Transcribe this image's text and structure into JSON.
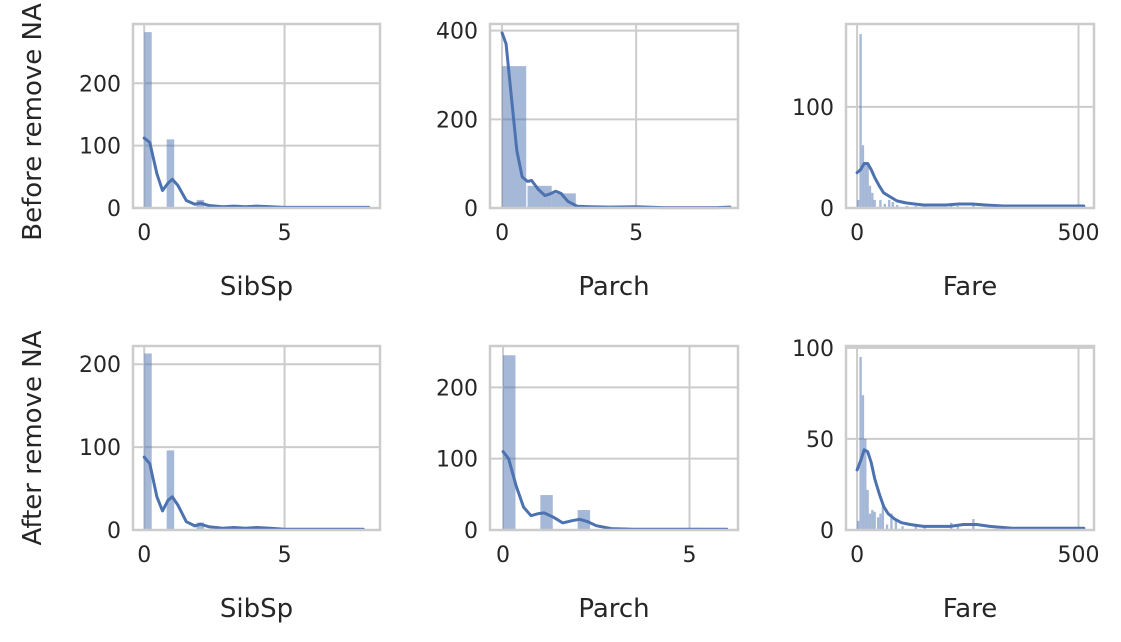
{
  "figure": {
    "row_labels": [
      "Before remove NA",
      "After remove NA"
    ]
  },
  "colors": {
    "series": "#4c72b0",
    "grid": "#cccccc",
    "text": "#262626"
  },
  "chart_data": [
    {
      "type": "bar",
      "xlabel": "SibSp",
      "ylabel": "",
      "title": "",
      "xlim": [
        -0.4,
        8.4
      ],
      "ylim": [
        0,
        295
      ],
      "xticks": [
        0,
        5
      ],
      "yticks": [
        0,
        100,
        200
      ],
      "grid": true,
      "bins": [
        {
          "x0": 0.0,
          "x1": 0.267,
          "y": 282
        },
        {
          "x0": 0.8,
          "x1": 1.067,
          "y": 110
        },
        {
          "x0": 1.867,
          "x1": 2.133,
          "y": 13
        },
        {
          "x0": 2.933,
          "x1": 3.2,
          "y": 3
        },
        {
          "x0": 3.733,
          "x1": 4.0,
          "y": 3
        },
        {
          "x0": 4.8,
          "x1": 5.067,
          "y": 2
        },
        {
          "x0": 7.733,
          "x1": 8.0,
          "y": 1
        }
      ],
      "kde": [
        [
          0,
          112
        ],
        [
          0.2,
          105
        ],
        [
          0.45,
          55
        ],
        [
          0.65,
          28
        ],
        [
          0.85,
          40
        ],
        [
          1.0,
          46
        ],
        [
          1.2,
          36
        ],
        [
          1.5,
          12
        ],
        [
          1.8,
          6
        ],
        [
          2.0,
          8
        ],
        [
          2.3,
          4
        ],
        [
          2.8,
          2
        ],
        [
          3.2,
          3
        ],
        [
          3.6,
          2
        ],
        [
          4.0,
          3
        ],
        [
          4.5,
          2
        ],
        [
          5.0,
          1
        ],
        [
          6.0,
          1
        ],
        [
          7.0,
          1
        ],
        [
          8.0,
          1
        ]
      ]
    },
    {
      "type": "bar",
      "xlabel": "Parch",
      "ylabel": "",
      "title": "",
      "xlim": [
        -0.45,
        8.8
      ],
      "ylim": [
        0,
        415
      ],
      "xticks": [
        0,
        5
      ],
      "yticks": [
        0,
        200,
        400
      ],
      "grid": true,
      "bins": [
        {
          "x0": 0.0,
          "x1": 0.9,
          "y": 320
        },
        {
          "x0": 0.95,
          "x1": 1.85,
          "y": 50
        },
        {
          "x0": 1.85,
          "x1": 2.75,
          "y": 33
        },
        {
          "x0": 2.75,
          "x1": 3.3,
          "y": 4
        },
        {
          "x0": 3.3,
          "x1": 4.6,
          "y": 4
        },
        {
          "x0": 4.6,
          "x1": 5.5,
          "y": 3
        },
        {
          "x0": 5.5,
          "x1": 6.4,
          "y": 1
        }
      ],
      "kde": [
        [
          0,
          395
        ],
        [
          0.15,
          370
        ],
        [
          0.35,
          250
        ],
        [
          0.55,
          130
        ],
        [
          0.75,
          70
        ],
        [
          0.95,
          60
        ],
        [
          1.1,
          62
        ],
        [
          1.35,
          42
        ],
        [
          1.6,
          28
        ],
        [
          1.8,
          32
        ],
        [
          2.0,
          38
        ],
        [
          2.2,
          33
        ],
        [
          2.45,
          15
        ],
        [
          2.8,
          4
        ],
        [
          3.3,
          3
        ],
        [
          4.0,
          2
        ],
        [
          5.0,
          3
        ],
        [
          6.0,
          1
        ],
        [
          7.0,
          1
        ],
        [
          8.0,
          1
        ],
        [
          8.5,
          2
        ]
      ]
    },
    {
      "type": "bar",
      "xlabel": "Fare",
      "ylabel": "",
      "title": "",
      "xlim": [
        -25,
        535
      ],
      "ylim": [
        0,
        182
      ],
      "xticks": [
        0,
        500
      ],
      "yticks": [
        0,
        100
      ],
      "grid": true,
      "bins": [
        {
          "x0": 0,
          "x1": 5.3,
          "y": 8
        },
        {
          "x0": 5.3,
          "x1": 10.6,
          "y": 172
        },
        {
          "x0": 10.6,
          "x1": 15.9,
          "y": 62
        },
        {
          "x0": 15.9,
          "x1": 21.2,
          "y": 44
        },
        {
          "x0": 21.2,
          "x1": 26.5,
          "y": 45
        },
        {
          "x0": 26.5,
          "x1": 31.8,
          "y": 22
        },
        {
          "x0": 31.8,
          "x1": 37.1,
          "y": 15
        },
        {
          "x0": 37.1,
          "x1": 42.4,
          "y": 8
        },
        {
          "x0": 50,
          "x1": 55.3,
          "y": 8
        },
        {
          "x0": 60,
          "x1": 65.3,
          "y": 4
        },
        {
          "x0": 70,
          "x1": 75.3,
          "y": 8
        },
        {
          "x0": 78,
          "x1": 83.3,
          "y": 6
        },
        {
          "x0": 88,
          "x1": 93.3,
          "y": 3
        },
        {
          "x0": 110,
          "x1": 115.3,
          "y": 2
        },
        {
          "x0": 130,
          "x1": 135.3,
          "y": 2
        },
        {
          "x0": 150,
          "x1": 155.3,
          "y": 4
        },
        {
          "x0": 210,
          "x1": 215.3,
          "y": 3
        },
        {
          "x0": 225,
          "x1": 230.3,
          "y": 2
        },
        {
          "x0": 260,
          "x1": 265.3,
          "y": 4
        },
        {
          "x0": 510,
          "x1": 515.3,
          "y": 2
        }
      ],
      "kde": [
        [
          0,
          35
        ],
        [
          8,
          38
        ],
        [
          16,
          44
        ],
        [
          24,
          44
        ],
        [
          32,
          38
        ],
        [
          40,
          30
        ],
        [
          50,
          22
        ],
        [
          60,
          15
        ],
        [
          75,
          11
        ],
        [
          90,
          7
        ],
        [
          110,
          5
        ],
        [
          130,
          4
        ],
        [
          150,
          3
        ],
        [
          170,
          3
        ],
        [
          200,
          3
        ],
        [
          230,
          4
        ],
        [
          260,
          4
        ],
        [
          290,
          3
        ],
        [
          330,
          2
        ],
        [
          400,
          2
        ],
        [
          450,
          2
        ],
        [
          512,
          2
        ]
      ]
    },
    {
      "type": "bar",
      "xlabel": "SibSp",
      "ylabel": "",
      "title": "",
      "xlim": [
        -0.4,
        8.4
      ],
      "ylim": [
        0,
        222
      ],
      "xticks": [
        0,
        5
      ],
      "yticks": [
        0,
        100,
        200
      ],
      "grid": true,
      "bins": [
        {
          "x0": 0.0,
          "x1": 0.267,
          "y": 213
        },
        {
          "x0": 0.8,
          "x1": 1.067,
          "y": 96
        },
        {
          "x0": 1.867,
          "x1": 2.133,
          "y": 9
        },
        {
          "x0": 2.933,
          "x1": 3.2,
          "y": 3
        },
        {
          "x0": 3.733,
          "x1": 4.0,
          "y": 3
        },
        {
          "x0": 4.8,
          "x1": 5.067,
          "y": 2
        }
      ],
      "kde": [
        [
          0,
          88
        ],
        [
          0.2,
          80
        ],
        [
          0.45,
          40
        ],
        [
          0.65,
          23
        ],
        [
          0.85,
          36
        ],
        [
          1.0,
          40
        ],
        [
          1.2,
          30
        ],
        [
          1.5,
          10
        ],
        [
          1.8,
          5
        ],
        [
          2.0,
          7
        ],
        [
          2.3,
          4
        ],
        [
          2.8,
          2
        ],
        [
          3.2,
          3
        ],
        [
          3.6,
          2
        ],
        [
          4.0,
          3
        ],
        [
          4.5,
          2
        ],
        [
          5.0,
          1
        ],
        [
          6.0,
          1
        ],
        [
          7.0,
          1
        ],
        [
          7.8,
          1
        ]
      ]
    },
    {
      "type": "bar",
      "xlabel": "Parch",
      "ylabel": "",
      "title": "",
      "xlim": [
        -0.35,
        6.3
      ],
      "ylim": [
        0,
        258
      ],
      "xticks": [
        0,
        5
      ],
      "yticks": [
        0,
        100,
        200
      ],
      "grid": true,
      "bins": [
        {
          "x0": 0.0,
          "x1": 0.333,
          "y": 245
        },
        {
          "x0": 1.0,
          "x1": 1.333,
          "y": 49
        },
        {
          "x0": 2.0,
          "x1": 2.333,
          "y": 28
        },
        {
          "x0": 3.0,
          "x1": 3.333,
          "y": 3
        },
        {
          "x0": 4.0,
          "x1": 4.333,
          "y": 2
        },
        {
          "x0": 5.0,
          "x1": 5.333,
          "y": 3
        },
        {
          "x0": 5.8,
          "x1": 6.1,
          "y": 1
        }
      ],
      "kde": [
        [
          0,
          110
        ],
        [
          0.15,
          100
        ],
        [
          0.35,
          62
        ],
        [
          0.55,
          32
        ],
        [
          0.75,
          20
        ],
        [
          0.95,
          23
        ],
        [
          1.1,
          24
        ],
        [
          1.35,
          18
        ],
        [
          1.6,
          10
        ],
        [
          1.85,
          13
        ],
        [
          2.05,
          15
        ],
        [
          2.25,
          12
        ],
        [
          2.5,
          6
        ],
        [
          2.9,
          2
        ],
        [
          3.5,
          1
        ],
        [
          4.5,
          1
        ],
        [
          5.5,
          1
        ],
        [
          6.0,
          1
        ]
      ]
    },
    {
      "type": "bar",
      "xlabel": "Fare",
      "ylabel": "",
      "title": "",
      "xlim": [
        -25,
        535
      ],
      "ylim": [
        0,
        101
      ],
      "xticks": [
        0,
        500
      ],
      "yticks": [
        0,
        50,
        100
      ],
      "grid": true,
      "bins": [
        {
          "x0": 0,
          "x1": 5.3,
          "y": 5
        },
        {
          "x0": 5.3,
          "x1": 10.6,
          "y": 95
        },
        {
          "x0": 10.6,
          "x1": 15.9,
          "y": 74
        },
        {
          "x0": 15.9,
          "x1": 21.2,
          "y": 50
        },
        {
          "x0": 21.2,
          "x1": 26.5,
          "y": 22
        },
        {
          "x0": 26.5,
          "x1": 31.8,
          "y": 9
        },
        {
          "x0": 31.8,
          "x1": 37.1,
          "y": 11
        },
        {
          "x0": 37.1,
          "x1": 42.4,
          "y": 10
        },
        {
          "x0": 45,
          "x1": 50.3,
          "y": 7
        },
        {
          "x0": 50.3,
          "x1": 55.6,
          "y": 9
        },
        {
          "x0": 55.6,
          "x1": 60.9,
          "y": 13
        },
        {
          "x0": 65,
          "x1": 70.3,
          "y": 3
        },
        {
          "x0": 75,
          "x1": 80.3,
          "y": 9
        },
        {
          "x0": 85,
          "x1": 90.3,
          "y": 5
        },
        {
          "x0": 100,
          "x1": 105.3,
          "y": 2
        },
        {
          "x0": 130,
          "x1": 135.3,
          "y": 2
        },
        {
          "x0": 150,
          "x1": 155.3,
          "y": 2
        },
        {
          "x0": 210,
          "x1": 215.3,
          "y": 4
        },
        {
          "x0": 225,
          "x1": 230.3,
          "y": 3
        },
        {
          "x0": 260,
          "x1": 265.3,
          "y": 6
        },
        {
          "x0": 510,
          "x1": 515.3,
          "y": 1
        }
      ],
      "kde": [
        [
          0,
          33
        ],
        [
          8,
          38
        ],
        [
          16,
          44
        ],
        [
          24,
          43
        ],
        [
          32,
          37
        ],
        [
          40,
          28
        ],
        [
          50,
          20
        ],
        [
          60,
          13
        ],
        [
          70,
          9
        ],
        [
          85,
          6
        ],
        [
          100,
          4
        ],
        [
          120,
          3
        ],
        [
          150,
          2
        ],
        [
          180,
          2
        ],
        [
          210,
          2
        ],
        [
          240,
          3
        ],
        [
          270,
          3
        ],
        [
          300,
          2
        ],
        [
          350,
          1
        ],
        [
          420,
          1
        ],
        [
          512,
          1
        ]
      ]
    }
  ]
}
